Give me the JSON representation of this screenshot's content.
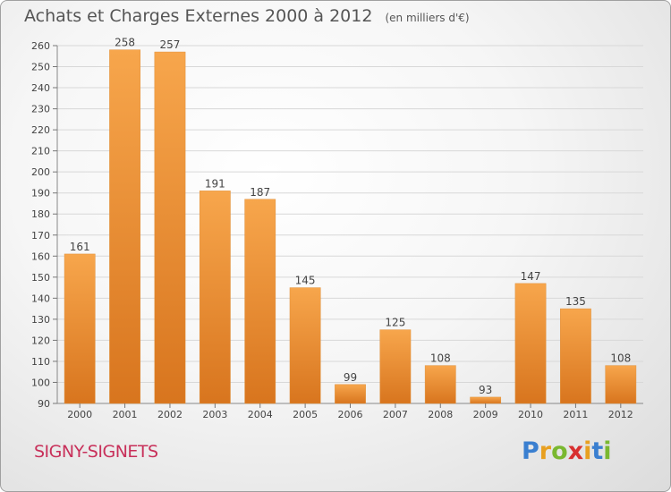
{
  "header": {
    "title": "Achats et Charges Externes 2000 à 2012",
    "unit": "(en milliers d'€)"
  },
  "footer": {
    "place": "SIGNY-SIGNETS",
    "logo_letters": [
      "P",
      "r",
      "o",
      "x",
      "i",
      "t",
      "i"
    ],
    "logo_colors": [
      "#3a7fd0",
      "#e8a020",
      "#7ab830",
      "#d83030",
      "#e8a020",
      "#3a7fd0",
      "#7ab830"
    ]
  },
  "chart_data": {
    "type": "bar",
    "categories": [
      "2000",
      "2001",
      "2002",
      "2003",
      "2004",
      "2005",
      "2006",
      "2007",
      "2008",
      "2009",
      "2010",
      "2011",
      "2012"
    ],
    "values": [
      161,
      258,
      257,
      191,
      187,
      145,
      99,
      125,
      108,
      93,
      147,
      135,
      108
    ],
    "ylim": [
      90,
      260
    ],
    "yticks": [
      90,
      100,
      110,
      120,
      130,
      140,
      150,
      160,
      170,
      180,
      190,
      200,
      210,
      220,
      230,
      240,
      250,
      260
    ],
    "grid": true,
    "bar_color_light": "#f7a64c",
    "bar_color_dark": "#d8751e"
  }
}
